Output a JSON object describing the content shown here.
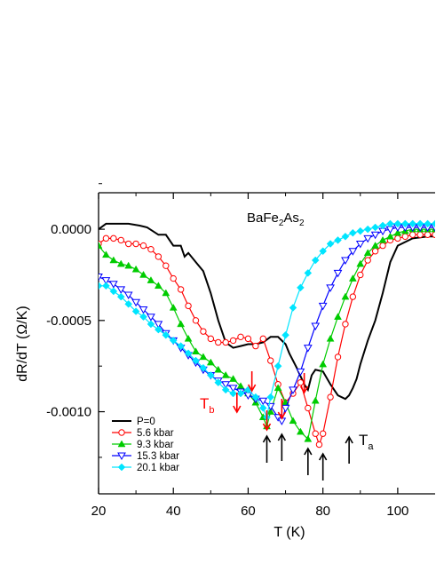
{
  "chart_data": {
    "type": "line",
    "title": "",
    "xlabel": "T (K)",
    "ylabel": "dR/dT (Ω/K)",
    "xlim": [
      20,
      110
    ],
    "ylim": [
      -0.00145,
      0.0002
    ],
    "xticks": [
      20,
      40,
      60,
      80,
      100
    ],
    "xtick_labels": [
      "20",
      "40",
      "60",
      "80",
      "100"
    ],
    "yticks": [
      0.0,
      -0.0005,
      -0.001
    ],
    "ytick_labels": [
      "0.0000",
      "-0.0005",
      "-0.0010"
    ],
    "grid": false,
    "legend_position": "bottom-left",
    "annotations": {
      "compound_main": "BaFe",
      "compound_sub1": "2",
      "compound_mid": "As",
      "compound_sub2": "2",
      "tb_main": "T",
      "tb_sub": "b",
      "ta_main": "T",
      "ta_sub": "a"
    },
    "arrows": {
      "red": [
        57,
        61,
        65,
        69,
        75
      ],
      "black": [
        65,
        69,
        76,
        80,
        87
      ]
    },
    "series": [
      {
        "name": "P=0",
        "color": "#000000",
        "marker": "none",
        "x": [
          20,
          22,
          25,
          28,
          31,
          33,
          36,
          38,
          40,
          42,
          43,
          44,
          46,
          48,
          50,
          52,
          54,
          56,
          58,
          60,
          62,
          64,
          66,
          68,
          70,
          71,
          73,
          75,
          76,
          77,
          78,
          80,
          82,
          84,
          86,
          87,
          88,
          89,
          90,
          92,
          94,
          96,
          98,
          100,
          104,
          108,
          110
        ],
        "y": [
          0.0,
          3e-05,
          3e-05,
          3e-05,
          2e-05,
          1e-05,
          -3e-05,
          -3e-05,
          -9e-05,
          -9e-05,
          -0.00015,
          -0.00013,
          -0.00018,
          -0.00023,
          -0.00035,
          -0.0005,
          -0.00062,
          -0.00065,
          -0.00064,
          -0.00063,
          -0.00063,
          -0.00062,
          -0.00059,
          -0.00059,
          -0.00063,
          -0.00068,
          -0.00076,
          -0.00085,
          -0.00088,
          -0.0008,
          -0.00077,
          -0.00078,
          -0.00085,
          -0.00091,
          -0.00093,
          -0.00091,
          -0.00087,
          -0.00082,
          -0.00074,
          -0.00061,
          -0.0005,
          -0.00035,
          -0.00018,
          -9e-05,
          -5e-05,
          -4e-05,
          -4e-05
        ]
      },
      {
        "name": "5.6 kbar",
        "color": "#ff0000",
        "marker": "circle-open",
        "x": [
          20,
          22,
          24,
          26,
          28,
          30,
          32,
          34,
          36,
          38,
          40,
          42,
          44,
          46,
          48,
          50,
          52,
          54,
          56,
          58,
          60,
          62,
          64,
          66,
          68,
          70,
          72,
          74,
          76,
          78,
          79,
          80,
          82,
          84,
          86,
          88,
          90,
          92,
          94,
          96,
          98,
          100,
          102,
          104,
          106,
          108,
          110
        ],
        "y": [
          -8e-05,
          -5e-05,
          -5e-05,
          -6e-05,
          -8e-05,
          -8e-05,
          -9e-05,
          -0.00011,
          -0.00015,
          -0.0002,
          -0.00027,
          -0.00033,
          -0.00042,
          -0.0005,
          -0.00056,
          -0.0006,
          -0.00062,
          -0.00062,
          -0.00061,
          -0.00059,
          -0.0006,
          -0.00064,
          -0.0006,
          -0.00072,
          -0.00085,
          -0.00095,
          -0.0009,
          -0.00084,
          -0.00098,
          -0.00112,
          -0.00118,
          -0.00112,
          -0.00092,
          -0.0007,
          -0.00052,
          -0.00037,
          -0.00025,
          -0.00017,
          -0.00012,
          -9e-05,
          -6e-05,
          -5e-05,
          -4e-05,
          -3e-05,
          -3e-05,
          -3e-05,
          -3e-05
        ]
      },
      {
        "name": "9.3 kbar",
        "color": "#00cc00",
        "marker": "triangle-filled",
        "x": [
          20,
          22,
          24,
          26,
          28,
          30,
          32,
          34,
          36,
          38,
          40,
          42,
          44,
          46,
          48,
          50,
          52,
          54,
          56,
          58,
          60,
          62,
          64,
          65,
          66,
          68,
          70,
          72,
          74,
          76,
          78,
          80,
          82,
          84,
          86,
          88,
          90,
          92,
          94,
          96,
          98,
          100,
          102,
          104,
          106,
          108,
          110
        ],
        "y": [
          -9e-05,
          -0.00014,
          -0.00017,
          -0.00019,
          -0.0002,
          -0.00022,
          -0.00025,
          -0.00028,
          -0.00031,
          -0.00035,
          -0.00043,
          -0.00052,
          -0.0006,
          -0.00067,
          -0.0007,
          -0.00073,
          -0.00077,
          -0.0008,
          -0.00082,
          -0.00086,
          -0.0009,
          -0.00095,
          -0.00103,
          -0.00108,
          -0.001,
          -0.00087,
          -0.00095,
          -0.00105,
          -0.00111,
          -0.00115,
          -0.00094,
          -0.00074,
          -0.0006,
          -0.00048,
          -0.00037,
          -0.00027,
          -0.00019,
          -0.00013,
          -9e-05,
          -6e-05,
          -4e-05,
          -2e-05,
          -1e-05,
          0.0,
          0.0,
          0.0,
          0.0
        ]
      },
      {
        "name": "15.3 kbar",
        "color": "#0000ff",
        "marker": "triangle-down-open",
        "x": [
          20,
          22,
          24,
          26,
          28,
          30,
          32,
          34,
          36,
          38,
          40,
          42,
          44,
          46,
          48,
          50,
          52,
          54,
          56,
          58,
          60,
          62,
          64,
          66,
          68,
          69,
          70,
          72,
          74,
          76,
          78,
          80,
          82,
          84,
          86,
          88,
          90,
          92,
          94,
          96,
          98,
          100,
          102,
          104,
          106,
          108,
          110
        ],
        "y": [
          -0.00026,
          -0.00028,
          -0.0003,
          -0.00033,
          -0.00036,
          -0.0004,
          -0.00044,
          -0.00048,
          -0.00052,
          -0.00057,
          -0.00061,
          -0.00065,
          -0.00069,
          -0.00073,
          -0.00077,
          -0.0008,
          -0.00083,
          -0.00085,
          -0.00087,
          -0.00089,
          -0.00091,
          -0.00093,
          -0.00094,
          -0.00097,
          -0.00103,
          -0.00105,
          -0.00098,
          -0.00088,
          -0.00078,
          -0.00065,
          -0.00053,
          -0.00042,
          -0.00032,
          -0.00024,
          -0.00017,
          -0.00012,
          -8e-05,
          -5e-05,
          -3e-05,
          -1e-05,
          0.0,
          1e-05,
          1e-05,
          1e-05,
          1e-05,
          1e-05,
          1e-05
        ]
      },
      {
        "name": "20.1 kbar",
        "color": "#00e5ff",
        "marker": "diamond-filled",
        "x": [
          20,
          22,
          24,
          26,
          28,
          30,
          32,
          34,
          36,
          38,
          40,
          42,
          44,
          46,
          48,
          50,
          52,
          54,
          56,
          58,
          60,
          62,
          64,
          65,
          66,
          68,
          70,
          72,
          74,
          76,
          78,
          80,
          82,
          84,
          86,
          88,
          90,
          92,
          94,
          96,
          98,
          100,
          102,
          104,
          106,
          108,
          110
        ],
        "y": [
          -0.00031,
          -0.00031,
          -0.00034,
          -0.00037,
          -0.00041,
          -0.00045,
          -0.00048,
          -0.00052,
          -0.00055,
          -0.00058,
          -0.00061,
          -0.00064,
          -0.00068,
          -0.00072,
          -0.00076,
          -0.0008,
          -0.00084,
          -0.00088,
          -0.0009,
          -0.0009,
          -0.00088,
          -0.00092,
          -0.00098,
          -0.00103,
          -0.00092,
          -0.00075,
          -0.00058,
          -0.00043,
          -0.00032,
          -0.00024,
          -0.00017,
          -0.00012,
          -8e-05,
          -6e-05,
          -4e-05,
          -2e-05,
          -1e-05,
          0.0,
          1e-05,
          2e-05,
          3e-05,
          3e-05,
          3e-05,
          3e-05,
          3e-05,
          3e-05,
          3e-05
        ]
      }
    ]
  }
}
